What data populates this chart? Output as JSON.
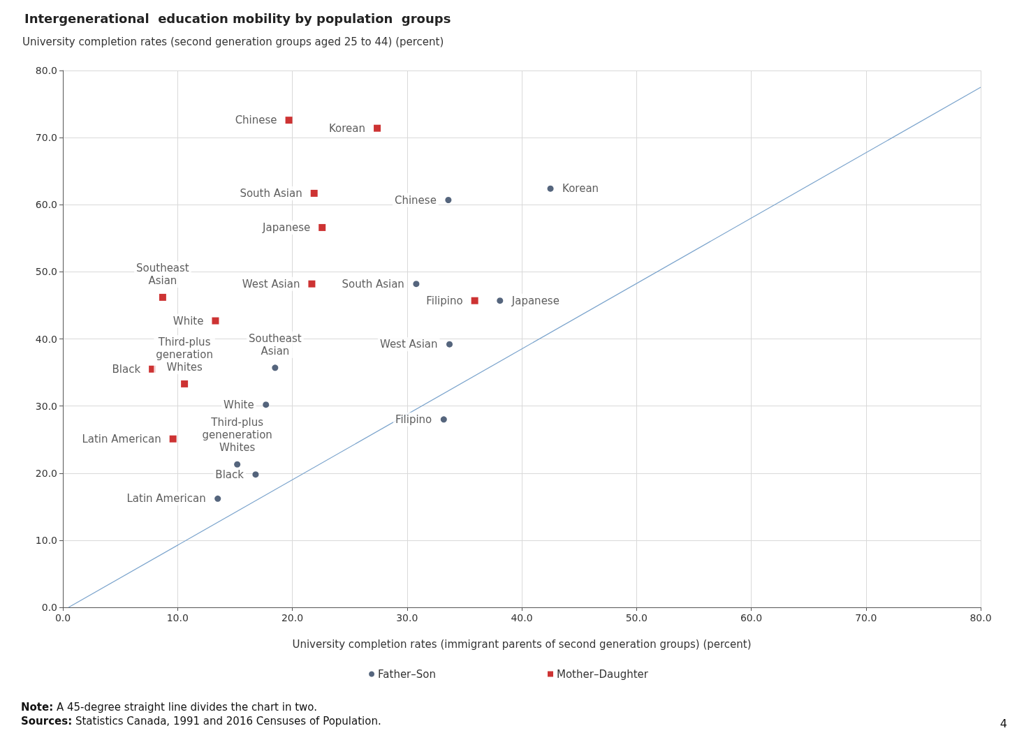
{
  "chart_data": {
    "type": "scatter",
    "title": "Intergenerational  education mobility by population  groups",
    "ylabel": "University completion rates (second generation groups aged 25 to 44) (percent)",
    "xlabel": "University completion rates (immigrant parents of second generation groups) (percent)",
    "xlim": [
      0,
      80
    ],
    "ylim": [
      0,
      80
    ],
    "xticks": [
      {
        "value": 0,
        "label": "0.0"
      },
      {
        "value": 10,
        "label": "10.0"
      },
      {
        "value": 20,
        "label": "20.0"
      },
      {
        "value": 30,
        "label": "30.0"
      },
      {
        "value": 40,
        "label": "40.0"
      },
      {
        "value": 50,
        "label": "50.0"
      },
      {
        "value": 60,
        "label": "60.0"
      },
      {
        "value": 70,
        "label": "70.0"
      },
      {
        "value": 80,
        "label": "80.0"
      }
    ],
    "yticks": [
      {
        "value": 0,
        "label": "0.0"
      },
      {
        "value": 10,
        "label": "10.0"
      },
      {
        "value": 20,
        "label": "20.0"
      },
      {
        "value": 30,
        "label": "30.0"
      },
      {
        "value": 40,
        "label": "40.0"
      },
      {
        "value": 50,
        "label": "50.0"
      },
      {
        "value": 60,
        "label": "60.0"
      },
      {
        "value": 70,
        "label": "70.0"
      },
      {
        "value": 80,
        "label": "80.0"
      }
    ],
    "grid": true,
    "legend": "bottom",
    "series": [
      {
        "name": "Father–Son",
        "color": "#2b3f5c",
        "marker": "circle",
        "x": [
          33.6,
          42.5,
          30.8,
          38.1,
          33.7,
          18.5,
          17.7,
          33.2,
          16.8,
          15.2,
          13.5
        ],
        "values": [
          60.7,
          62.4,
          48.2,
          45.7,
          39.2,
          35.7,
          30.2,
          28.0,
          19.8,
          21.3,
          16.2
        ]
      },
      {
        "name": "Mother–Daughter",
        "color": "#c00000",
        "marker": "square",
        "x": [
          19.7,
          27.4,
          21.9,
          22.6,
          21.7,
          8.7,
          13.3,
          7.8,
          10.6,
          9.6,
          35.9
        ],
        "values": [
          72.6,
          71.4,
          61.7,
          56.6,
          48.2,
          46.2,
          42.7,
          35.5,
          33.3,
          25.1,
          45.7
        ]
      },
      {
        "type": "line",
        "color": "#7aa3cc",
        "marker": "none",
        "x": [
          0.5,
          80
        ],
        "values": [
          0,
          77.5
        ]
      }
    ],
    "annotations": [
      {
        "text": "Chinese",
        "x": 33.6,
        "y": 60.7
      },
      {
        "text": "Korean",
        "x": 42.5,
        "y": 62.4
      },
      {
        "text": "South Asian",
        "x": 30.8,
        "y": 48.2
      },
      {
        "text": "Japanese",
        "x": 38.1,
        "y": 45.7
      },
      {
        "text": "West Asian",
        "x": 33.7,
        "y": 39.2
      },
      {
        "text": "Southeast\nAsian",
        "x": 18.5,
        "y": 35.7
      },
      {
        "text": "White",
        "x": 17.7,
        "y": 30.2
      },
      {
        "text": "Filipino",
        "x": 33.2,
        "y": 28.0
      },
      {
        "text": "Black",
        "x": 16.8,
        "y": 19.8
      },
      {
        "text": "Third-plus\ngeneneration\nWhites",
        "x": 15.2,
        "y": 21.3
      },
      {
        "text": "Latin American",
        "x": 13.5,
        "y": 16.2
      },
      {
        "text": "Chinese",
        "x": 19.7,
        "y": 72.6
      },
      {
        "text": "Korean",
        "x": 27.4,
        "y": 71.4
      },
      {
        "text": "South Asian",
        "x": 21.9,
        "y": 61.7
      },
      {
        "text": "Japanese",
        "x": 22.6,
        "y": 56.6
      },
      {
        "text": "West Asian",
        "x": 21.7,
        "y": 48.2
      },
      {
        "text": "Southeast\nAsian",
        "x": 8.7,
        "y": 46.2
      },
      {
        "text": "White",
        "x": 13.3,
        "y": 42.7
      },
      {
        "text": "Black",
        "x": 7.8,
        "y": 35.5
      },
      {
        "text": "Third-plus\ngeneration\nWhites",
        "x": 10.6,
        "y": 33.3
      },
      {
        "text": "Latin American",
        "x": 9.6,
        "y": 25.1
      },
      {
        "text": "Filipino",
        "x": 35.9,
        "y": 45.7
      },
      "Note: A 45-degree straight line divides the chart in two.",
      "Sources: Statistics Canada, 1991 and 2016 Censuses of Population.",
      "4"
    ]
  }
}
